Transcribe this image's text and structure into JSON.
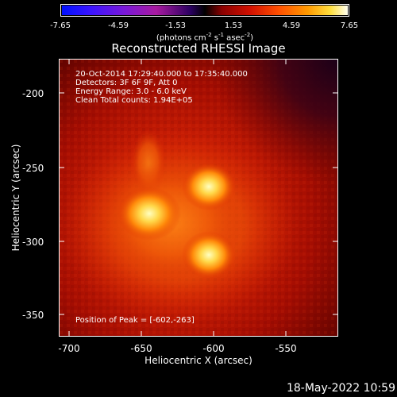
{
  "colorbar": {
    "ticks": [
      "-7.65",
      "-4.59",
      "-1.53",
      "1.53",
      "4.59",
      "7.65"
    ],
    "unit_prefix": "(photons cm",
    "unit_exp1": "-2",
    "unit_mid1": " s",
    "unit_exp2": "-1",
    "unit_mid2": " asec",
    "unit_exp3": "-2",
    "unit_suffix": ")"
  },
  "title": "Reconstructed RHESSI Image",
  "info": {
    "line1": "20-Oct-2014 17:29:40.000 to 17:35:40.000",
    "line2": "Detectors: 3F 6F 9F, Att 0",
    "line3": "Energy Range: 3.0 - 6.0 keV",
    "line4": "Clean    Total counts: 1.94E+05"
  },
  "peak_label": "Position of Peak = [-602,-263]",
  "x_axis": {
    "label": "Heliocentric X (arcsec)",
    "ticks": [
      "-700",
      "-650",
      "-600",
      "-550"
    ]
  },
  "y_axis": {
    "label": "Heliocentric Y (arcsec)",
    "ticks": [
      "-200",
      "-250",
      "-300",
      "-350"
    ]
  },
  "timestamp": "18-May-2022 10:59"
}
